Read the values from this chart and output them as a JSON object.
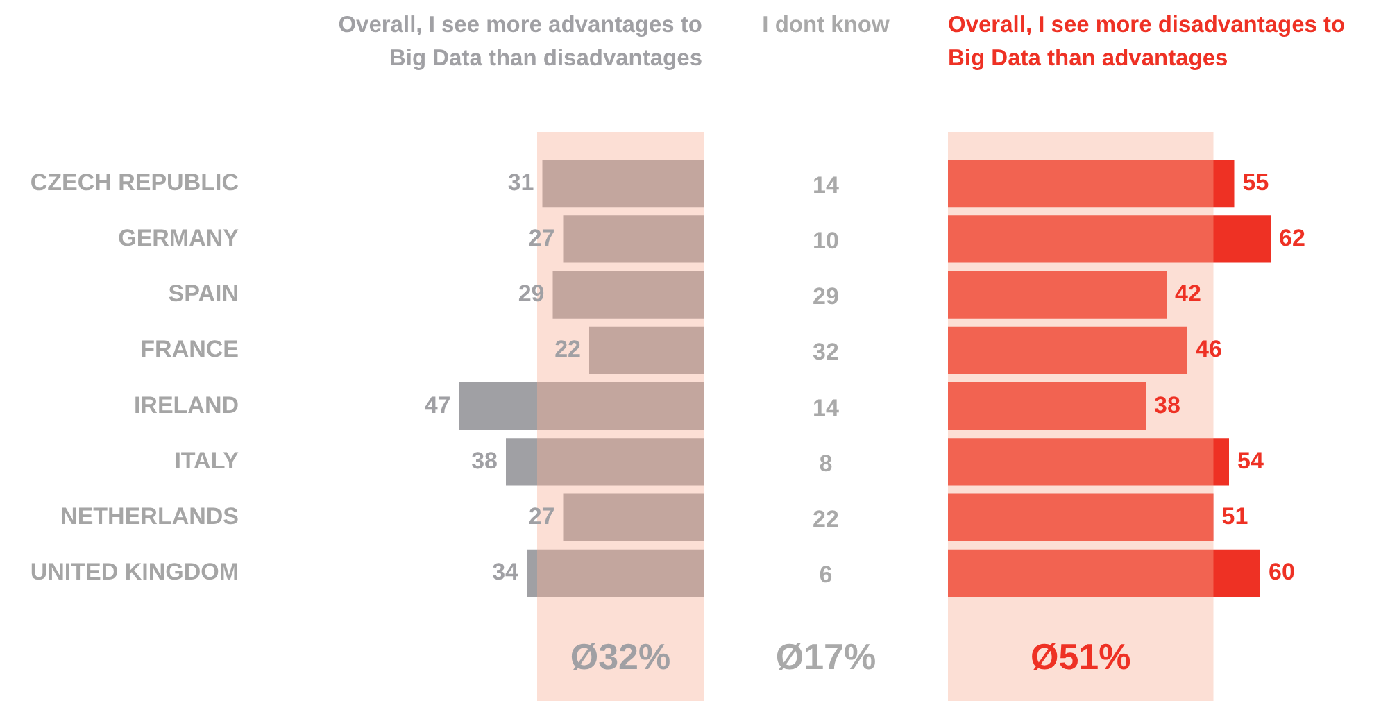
{
  "chart_data": [
    {
      "type": "bar",
      "orientation": "horizontal",
      "title": "Overall, I see more advantages to Big Data than disadvantages",
      "categories": [
        "CZECH REPUBLIC",
        "GERMANY",
        "SPAIN",
        "FRANCE",
        "IRELAND",
        "ITALY",
        "NETHERLANDS",
        "UNITED KINGDOM"
      ],
      "values": [
        31,
        27,
        29,
        22,
        47,
        38,
        27,
        34
      ],
      "color": "#a0a0a4",
      "data_labels": true,
      "bands": [
        {
          "axis": "x",
          "from": 0,
          "to": 32,
          "label": "Ø32%",
          "color": "#f8af96"
        }
      ]
    },
    {
      "type": "other",
      "title": "I dont know",
      "categories": [
        null,
        null,
        null,
        null,
        null,
        null,
        null,
        null
      ],
      "values": [
        14,
        10,
        29,
        32,
        14,
        8,
        22,
        6
      ],
      "color": "#a9a9a9",
      "data_labels": true,
      "annotations": [
        "Ø17%"
      ]
    },
    {
      "type": "bar",
      "orientation": "horizontal",
      "title": "Overall, I see more disadvantages to Big Data than advantages",
      "categories": [
        null,
        null,
        null,
        null,
        null,
        null,
        null,
        null
      ],
      "values": [
        55,
        62,
        42,
        46,
        38,
        54,
        51,
        60
      ],
      "color": "#ee3124",
      "data_labels": true,
      "bands": [
        {
          "axis": "x",
          "from": 0,
          "to": 51,
          "label": "Ø51%",
          "color": "#f8af96"
        }
      ]
    }
  ]
}
